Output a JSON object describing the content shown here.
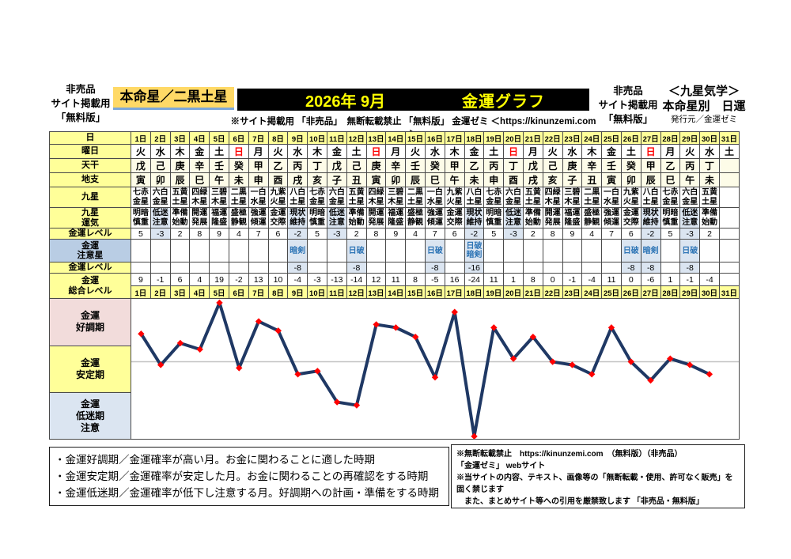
{
  "header": {
    "left_note": [
      "非売品",
      "サイト掲載用",
      "「無料版」"
    ],
    "honmeisei": "本命星／二黒土星",
    "year_month": "2026年 9月",
    "title": "金運グラフ",
    "subtitle": "※サイト掲載用 「非売品」　無断転載禁止 「無料版」 金運ゼミ ＜https://kinunzemi.com＞",
    "right_note": [
      "非売品",
      "サイト掲載用",
      "「無料版」"
    ],
    "school": "＜九星気学＞",
    "school_sub": "本命星別　日運",
    "publisher": "発行元／金運ゼミ"
  },
  "table": {
    "row_labels": {
      "day": "日",
      "youbi": "曜日",
      "tenkan": "天干",
      "chishi": "地支",
      "kyusei": "九星",
      "kyusei_unki": "九星\n運気",
      "kinun_level": "金運レベル",
      "chui_star": "金運\n注意星",
      "kinun_level2": "金運レベル",
      "total_level": "金運\n総合レベル"
    },
    "days": [
      "1日",
      "2日",
      "3日",
      "4日",
      "5日",
      "6日",
      "7日",
      "8日",
      "9日",
      "10日",
      "11日",
      "12日",
      "13日",
      "14日",
      "15日",
      "16日",
      "17日",
      "18日",
      "19日",
      "20日",
      "21日",
      "22日",
      "23日",
      "24日",
      "25日",
      "26日",
      "27日",
      "28日",
      "29日",
      "30日",
      "31日"
    ],
    "youbi": [
      "火",
      "水",
      "木",
      "金",
      "土",
      "日",
      "月",
      "火",
      "水",
      "木",
      "金",
      "土",
      "日",
      "月",
      "火",
      "水",
      "木",
      "金",
      "土",
      "日",
      "月",
      "火",
      "水",
      "木",
      "金",
      "土",
      "日",
      "月",
      "火",
      "水",
      "土"
    ],
    "tenkan": [
      "戊",
      "己",
      "庚",
      "辛",
      "壬",
      "癸",
      "甲",
      "乙",
      "丙",
      "丁",
      "戊",
      "己",
      "庚",
      "辛",
      "壬",
      "癸",
      "甲",
      "乙",
      "丙",
      "丁",
      "戊",
      "己",
      "庚",
      "辛",
      "壬",
      "癸",
      "甲",
      "乙",
      "丙",
      "丁",
      ""
    ],
    "chishi": [
      "寅",
      "卯",
      "辰",
      "巳",
      "午",
      "未",
      "申",
      "酉",
      "戌",
      "亥",
      "子",
      "丑",
      "寅",
      "卯",
      "辰",
      "巳",
      "午",
      "未",
      "申",
      "酉",
      "戌",
      "亥",
      "子",
      "丑",
      "寅",
      "卯",
      "辰",
      "巳",
      "午",
      "未",
      ""
    ],
    "kyusei": [
      "七赤金星",
      "六白金星",
      "五黄土星",
      "四緑木星",
      "三碧木星",
      "二黒土星",
      "一白水星",
      "九紫火星",
      "八白土星",
      "七赤金星",
      "六白金星",
      "五黄土星",
      "四緑木星",
      "三碧木星",
      "二黒土星",
      "一白水星",
      "九紫火星",
      "八白土星",
      "七赤金星",
      "六白金星",
      "五黄土星",
      "四緑木星",
      "三碧木星",
      "二黒土星",
      "一白水星",
      "九紫火星",
      "八白土星",
      "七赤金星",
      "六白金星",
      "五黄土星",
      ""
    ],
    "kyusei_unki": [
      "明暗慎重",
      "低迷注意",
      "準備始動",
      "開運発展",
      "福運隆盛",
      "盛極静観",
      "強運傾運",
      "金運交際",
      "現状維持",
      "明暗慎重",
      "低迷注意",
      "準備始動",
      "開運発展",
      "福運隆盛",
      "盛極静観",
      "強運傾運",
      "金運交際",
      "現状維持",
      "明暗慎重",
      "低迷注意",
      "準備始動",
      "開運発展",
      "福運隆盛",
      "盛極静観",
      "強運傾運",
      "金運交際",
      "現状維持",
      "明暗慎重",
      "低迷注意",
      "準備始動",
      ""
    ],
    "kinun_level": [
      5,
      -3,
      2,
      8,
      9,
      4,
      7,
      6,
      -2,
      5,
      -3,
      2,
      8,
      9,
      4,
      7,
      6,
      -2,
      5,
      -3,
      2,
      8,
      9,
      4,
      7,
      6,
      -2,
      5,
      -3,
      2,
      ""
    ],
    "chui_star": [
      "",
      "",
      "",
      "",
      "",
      "",
      "",
      "",
      "暗剣",
      "",
      "",
      "日破",
      "",
      "",
      "",
      "日破",
      "",
      "日破\n暗剣",
      "",
      "",
      "",
      "",
      "",
      "",
      "",
      "日破",
      "暗剣",
      "",
      "日破",
      "",
      ""
    ],
    "chui_level": [
      "",
      "",
      "",
      "",
      "",
      "",
      "",
      "",
      -8,
      "",
      "",
      -8,
      "",
      "",
      "",
      -8,
      "",
      -16,
      "",
      "",
      "",
      "",
      "",
      "",
      "",
      -8,
      -8,
      "",
      -8,
      "",
      ""
    ],
    "total_level": [
      9,
      -1,
      6,
      4,
      19,
      -2,
      13,
      10,
      -4,
      -3,
      -13,
      -14,
      12,
      11,
      8,
      -5,
      16,
      -24,
      11,
      1,
      8,
      0,
      -1,
      -4,
      11,
      0,
      -6,
      1,
      -1,
      -4,
      ""
    ]
  },
  "graph": {
    "zones": [
      {
        "label": "金運\n好調期",
        "color": "#f2dcdb"
      },
      {
        "label": "金運\n安定期",
        "color": "#ffff99"
      },
      {
        "label": "金運\n低迷期\n注意",
        "color": "#dbe5f1"
      }
    ]
  },
  "chart_data": {
    "type": "line",
    "title": "金運グラフ",
    "series_name": "金運総合レベル",
    "categories": [
      "1日",
      "2日",
      "3日",
      "4日",
      "5日",
      "6日",
      "7日",
      "8日",
      "9日",
      "10日",
      "11日",
      "12日",
      "13日",
      "14日",
      "15日",
      "16日",
      "17日",
      "18日",
      "19日",
      "20日",
      "21日",
      "22日",
      "23日",
      "24日",
      "25日",
      "26日",
      "27日",
      "28日",
      "29日",
      "30日"
    ],
    "values": [
      9,
      -1,
      6,
      4,
      19,
      -2,
      13,
      10,
      -4,
      -3,
      -13,
      -14,
      12,
      11,
      8,
      -5,
      16,
      -24,
      11,
      1,
      8,
      0,
      -1,
      -4,
      11,
      0,
      -6,
      1,
      -1,
      -4
    ],
    "ylim": [
      -26,
      20
    ],
    "zero_line": true,
    "grid": "zero-line-only",
    "legend_position": "none",
    "line_color": "#1f3864",
    "marker_color": "#ff0000",
    "zone_bands": [
      "金運好調期",
      "金運安定期",
      "金運低迷期注意"
    ]
  },
  "footer": {
    "legend": [
      "・金運好調期／金運確率が高い月。お金に関わることに適した時期",
      "・金運安定期／金運確率が安定した月。お金に関わることの再確認をする時期",
      "・金運低迷期／金運確率が低下し注意する月。好調期への計画・準備をする時期"
    ],
    "copyright": [
      "※無断転載禁止　https://kinunzemi.com　（無料版）（非売品）",
      "「金運ゼミ」 webサイト",
      "※当サイトの内容、テキスト、画像等の「無断転載・使用、許可なく販売」を固く禁じます",
      "　また、まとめサイト等への引用を厳禁致します 「非売品・無料版」"
    ]
  }
}
